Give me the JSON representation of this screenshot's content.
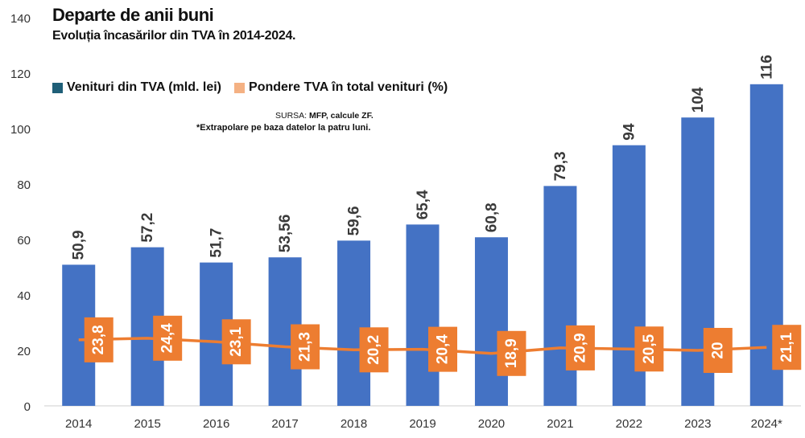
{
  "header": {
    "title": "Departe de anii buni",
    "subtitle": "Evoluția încasărilor din TVA în 2014-2024."
  },
  "source": {
    "label": "SURSA:",
    "text": "MFP, calcule ZF."
  },
  "note": "*Extrapolare pe baza datelor la patru luni.",
  "colors": {
    "bar": "#4472C4",
    "legend_bar_swatch": "#1F5F78",
    "line": "#ED7D31",
    "legend_line_swatch": "#F4B183",
    "axis_text": "#333333"
  },
  "chart_data": {
    "type": "bar",
    "title": "Departe de anii buni",
    "subtitle": "Evoluția încasărilor din TVA în 2014-2024.",
    "categories": [
      "2014",
      "2015",
      "2016",
      "2017",
      "2018",
      "2019",
      "2020",
      "2021",
      "2022",
      "2023",
      "2024*"
    ],
    "ylim": [
      0,
      140
    ],
    "yticks": [
      0,
      20,
      40,
      60,
      80,
      100,
      120,
      140
    ],
    "grid": false,
    "legend_position": "top-left",
    "series": [
      {
        "name": "Venituri din TVA (mld. lei)",
        "kind": "bar",
        "values": [
          50.9,
          57.2,
          51.7,
          53.56,
          59.6,
          65.4,
          60.8,
          79.3,
          94,
          104,
          116
        ],
        "labels": [
          "50,9",
          "57,2",
          "51,7",
          "53,56",
          "59,6",
          "65,4",
          "60,8",
          "79,3",
          "94",
          "104",
          "116"
        ]
      },
      {
        "name": "Pondere TVA în total venituri (%)",
        "kind": "line",
        "values": [
          23.8,
          24.4,
          23.1,
          21.3,
          20.2,
          20.4,
          18.9,
          20.9,
          20.5,
          20,
          21.1
        ],
        "labels": [
          "23,8",
          "24,4",
          "23,1",
          "21,3",
          "20,2",
          "20,4",
          "18,9",
          "20,9",
          "20,5",
          "20",
          "21,1"
        ]
      }
    ]
  }
}
